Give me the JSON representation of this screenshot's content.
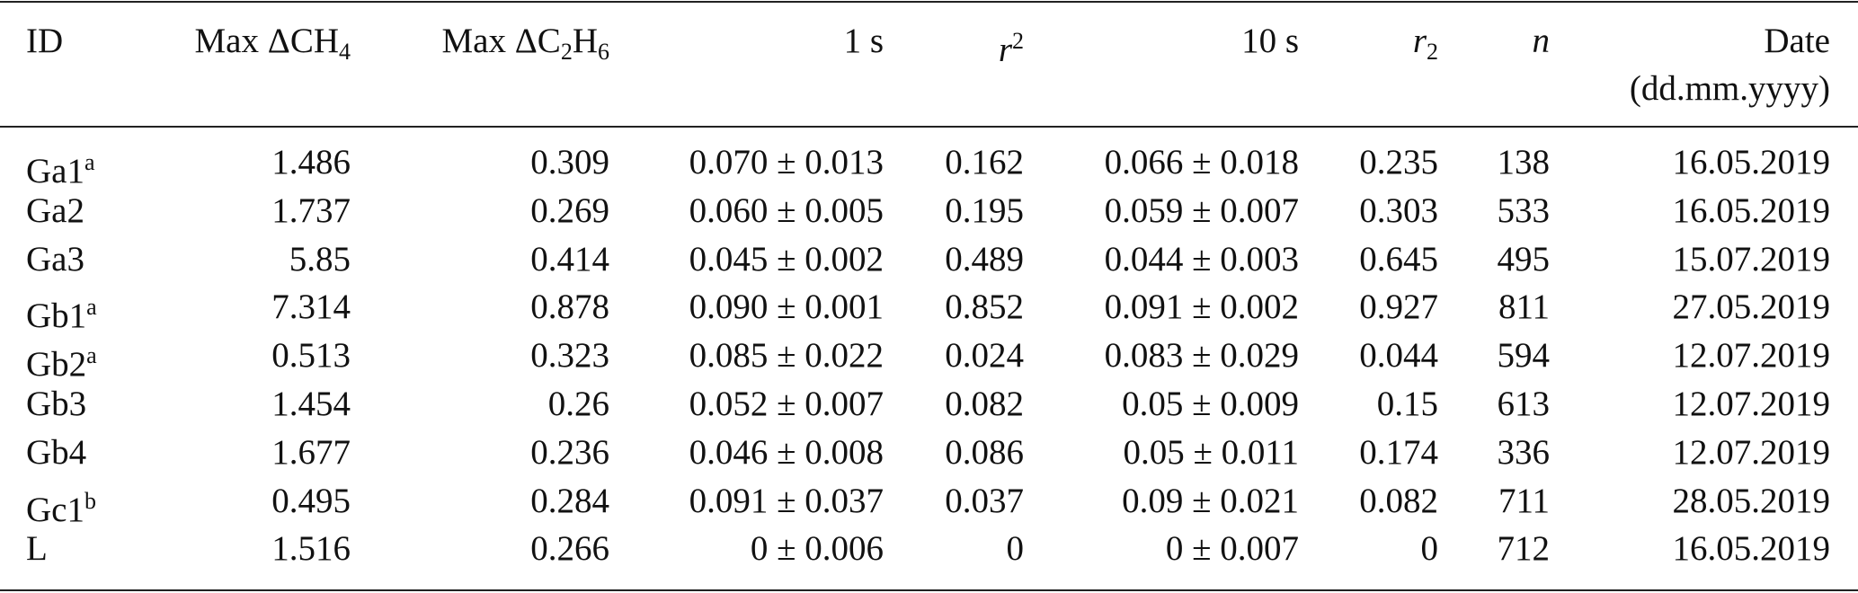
{
  "table": {
    "columns": [
      {
        "lines": [
          [
            {
              "text": "ID"
            }
          ]
        ]
      },
      {
        "lines": [
          [
            {
              "text": "Max ΔCH"
            },
            {
              "text": "4",
              "style": "sub"
            }
          ]
        ]
      },
      {
        "lines": [
          [
            {
              "text": "Max ΔC"
            },
            {
              "text": "2",
              "style": "sub"
            },
            {
              "text": "H"
            },
            {
              "text": "6",
              "style": "sub"
            }
          ]
        ]
      },
      {
        "lines": [
          [
            {
              "text": "1 s"
            }
          ]
        ]
      },
      {
        "lines": [
          [
            {
              "text": "r",
              "style": "italic"
            },
            {
              "text": "2",
              "style": "sup"
            }
          ]
        ]
      },
      {
        "lines": [
          [
            {
              "text": "10 s"
            }
          ]
        ]
      },
      {
        "lines": [
          [
            {
              "text": "r",
              "style": "italic"
            },
            {
              "text": "2",
              "style": "sub"
            }
          ]
        ]
      },
      {
        "lines": [
          [
            {
              "text": "n",
              "style": "italic"
            }
          ]
        ]
      },
      {
        "lines": [
          [
            {
              "text": "Date"
            }
          ],
          [
            {
              "text": "(dd.mm.yyyy)"
            }
          ]
        ]
      }
    ],
    "rows": [
      [
        {
          "text": "Ga1",
          "sup": "a"
        },
        "1.486",
        "0.309",
        "0.070 ± 0.013",
        "0.162",
        "0.066 ± 0.018",
        "0.235",
        "138",
        "16.05.2019"
      ],
      [
        {
          "text": "Ga2"
        },
        "1.737",
        "0.269",
        "0.060 ± 0.005",
        "0.195",
        "0.059 ± 0.007",
        "0.303",
        "533",
        "16.05.2019"
      ],
      [
        {
          "text": "Ga3"
        },
        "5.85",
        "0.414",
        "0.045 ± 0.002",
        "0.489",
        "0.044 ± 0.003",
        "0.645",
        "495",
        "15.07.2019"
      ],
      [
        {
          "text": "Gb1",
          "sup": "a"
        },
        "7.314",
        "0.878",
        "0.090 ± 0.001",
        "0.852",
        "0.091 ± 0.002",
        "0.927",
        "811",
        "27.05.2019"
      ],
      [
        {
          "text": "Gb2",
          "sup": "a"
        },
        "0.513",
        "0.323",
        "0.085 ± 0.022",
        "0.024",
        "0.083 ± 0.029",
        "0.044",
        "594",
        "12.07.2019"
      ],
      [
        {
          "text": "Gb3"
        },
        "1.454",
        "0.26",
        "0.052 ± 0.007",
        "0.082",
        "0.05 ± 0.009",
        "0.15",
        "613",
        "12.07.2019"
      ],
      [
        {
          "text": "Gb4"
        },
        "1.677",
        "0.236",
        "0.046 ± 0.008",
        "0.086",
        "0.05 ± 0.011",
        "0.174",
        "336",
        "12.07.2019"
      ],
      [
        {
          "text": "Gc1",
          "sup": "b"
        },
        "0.495",
        "0.284",
        "0.091 ± 0.037",
        "0.037",
        "0.09 ± 0.021",
        "0.082",
        "711",
        "28.05.2019"
      ],
      [
        {
          "text": "L"
        },
        "1.516",
        "0.266",
        "0 ± 0.006",
        "0",
        "0 ± 0.007",
        "0",
        "712",
        "16.05.2019"
      ]
    ]
  }
}
